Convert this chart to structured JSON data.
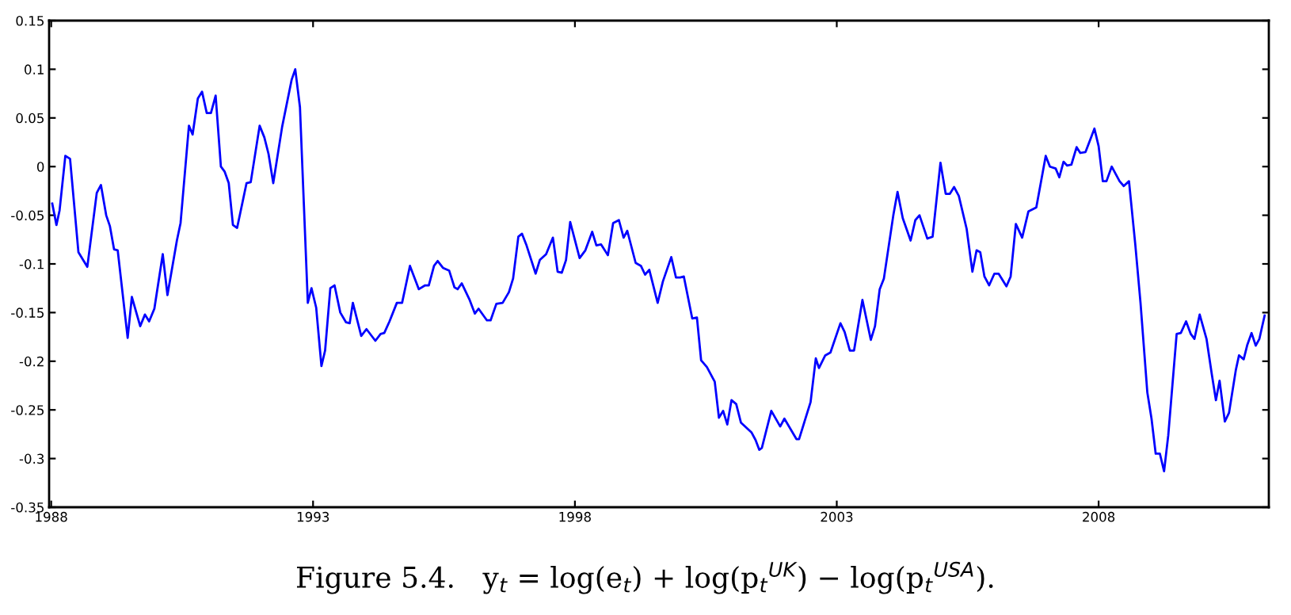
{
  "chart_data": {
    "type": "line",
    "color": "#0000ff",
    "x": [
      1988.02,
      1988.1,
      1988.16,
      1988.27,
      1988.36,
      1988.52,
      1988.69,
      1988.87,
      1988.95,
      1989.05,
      1989.12,
      1989.2,
      1989.27,
      1989.46,
      1989.54,
      1989.7,
      1989.79,
      1989.87,
      1989.97,
      1990.13,
      1990.22,
      1990.4,
      1990.47,
      1990.63,
      1990.7,
      1990.8,
      1990.88,
      1990.97,
      1991.05,
      1991.14,
      1991.24,
      1991.31,
      1991.39,
      1991.47,
      1991.55,
      1991.73,
      1991.81,
      1991.98,
      1992.07,
      1992.15,
      1992.24,
      1992.41,
      1992.59,
      1992.66,
      1992.75,
      1992.9,
      1992.97,
      1993.06,
      1993.16,
      1993.23,
      1993.33,
      1993.41,
      1993.52,
      1993.63,
      1993.7,
      1993.76,
      1993.92,
      1994.02,
      1994.19,
      1994.29,
      1994.36,
      1994.46,
      1994.6,
      1994.7,
      1994.85,
      1995.02,
      1995.14,
      1995.21,
      1995.31,
      1995.38,
      1995.48,
      1995.6,
      1995.7,
      1995.76,
      1995.84,
      1995.99,
      1996.09,
      1996.16,
      1996.32,
      1996.39,
      1996.5,
      1996.62,
      1996.74,
      1996.82,
      1996.92,
      1996.99,
      1997.07,
      1997.25,
      1997.33,
      1997.45,
      1997.58,
      1997.67,
      1997.75,
      1997.83,
      1997.91,
      1998.09,
      1998.2,
      1998.33,
      1998.41,
      1998.5,
      1998.63,
      1998.73,
      1998.84,
      1998.93,
      1999.0,
      1999.16,
      1999.26,
      1999.34,
      1999.42,
      1999.58,
      1999.68,
      1999.84,
      1999.93,
      2000.01,
      2000.08,
      2000.24,
      2000.33,
      2000.41,
      2000.52,
      2000.67,
      2000.75,
      2000.83,
      2000.91,
      2000.99,
      2001.08,
      2001.17,
      2001.37,
      2001.45,
      2001.52,
      2001.57,
      2001.75,
      2001.92,
      2002.0,
      2002.23,
      2002.28,
      2002.5,
      2002.6,
      2002.66,
      2002.78,
      2002.88,
      2003.07,
      2003.15,
      2003.25,
      2003.33,
      2003.49,
      2003.65,
      2003.73,
      2003.82,
      2003.9,
      2004.08,
      2004.16,
      2004.26,
      2004.41,
      2004.5,
      2004.58,
      2004.73,
      2004.83,
      2004.98,
      2005.08,
      2005.16,
      2005.24,
      2005.33,
      2005.48,
      2005.59,
      2005.67,
      2005.74,
      2005.82,
      2005.91,
      2006.01,
      2006.09,
      2006.24,
      2006.32,
      2006.42,
      2006.54,
      2006.66,
      2006.81,
      2006.99,
      2007.07,
      2007.18,
      2007.25,
      2007.33,
      2007.4,
      2007.48,
      2007.58,
      2007.65,
      2007.75,
      2007.85,
      2007.92,
      2008.0,
      2008.08,
      2008.15,
      2008.25,
      2008.4,
      2008.48,
      2008.58,
      2008.7,
      2008.8,
      2008.93,
      2009.01,
      2009.09,
      2009.17,
      2009.25,
      2009.33,
      2009.49,
      2009.57,
      2009.67,
      2009.76,
      2009.83,
      2009.93,
      2010.06,
      2010.16,
      2010.24,
      2010.31,
      2010.41,
      2010.49,
      2010.62,
      2010.68,
      2010.77,
      2010.84,
      2010.92,
      2011.0,
      2011.07,
      2011.17
    ],
    "values": [
      -0.038,
      -0.06,
      -0.045,
      0.011,
      0.008,
      -0.088,
      -0.103,
      -0.027,
      -0.019,
      -0.05,
      -0.061,
      -0.085,
      -0.086,
      -0.176,
      -0.134,
      -0.164,
      -0.152,
      -0.159,
      -0.146,
      -0.09,
      -0.132,
      -0.076,
      -0.058,
      0.042,
      0.033,
      0.07,
      0.077,
      0.055,
      0.055,
      0.073,
      0.0,
      -0.005,
      -0.017,
      -0.06,
      -0.063,
      -0.017,
      -0.016,
      0.042,
      0.03,
      0.013,
      -0.017,
      0.041,
      0.089,
      0.1,
      0.061,
      -0.14,
      -0.125,
      -0.145,
      -0.205,
      -0.189,
      -0.125,
      -0.122,
      -0.15,
      -0.16,
      -0.161,
      -0.14,
      -0.174,
      -0.167,
      -0.179,
      -0.172,
      -0.171,
      -0.159,
      -0.14,
      -0.14,
      -0.102,
      -0.126,
      -0.122,
      -0.122,
      -0.102,
      -0.097,
      -0.104,
      -0.107,
      -0.124,
      -0.126,
      -0.12,
      -0.137,
      -0.151,
      -0.146,
      -0.158,
      -0.158,
      -0.141,
      -0.14,
      -0.129,
      -0.115,
      -0.072,
      -0.069,
      -0.08,
      -0.11,
      -0.096,
      -0.09,
      -0.073,
      -0.108,
      -0.109,
      -0.096,
      -0.057,
      -0.094,
      -0.086,
      -0.067,
      -0.081,
      -0.08,
      -0.091,
      -0.058,
      -0.055,
      -0.073,
      -0.066,
      -0.099,
      -0.102,
      -0.111,
      -0.106,
      -0.14,
      -0.118,
      -0.093,
      -0.114,
      -0.114,
      -0.113,
      -0.156,
      -0.155,
      -0.199,
      -0.206,
      -0.221,
      -0.258,
      -0.251,
      -0.265,
      -0.24,
      -0.244,
      -0.263,
      -0.273,
      -0.281,
      -0.291,
      -0.289,
      -0.251,
      -0.267,
      -0.259,
      -0.28,
      -0.28,
      -0.242,
      -0.197,
      -0.207,
      -0.194,
      -0.191,
      -0.161,
      -0.17,
      -0.189,
      -0.189,
      -0.137,
      -0.178,
      -0.164,
      -0.126,
      -0.115,
      -0.05,
      -0.026,
      -0.053,
      -0.076,
      -0.055,
      -0.05,
      -0.074,
      -0.072,
      0.004,
      -0.028,
      -0.028,
      -0.021,
      -0.03,
      -0.064,
      -0.108,
      -0.086,
      -0.088,
      -0.113,
      -0.122,
      -0.11,
      -0.11,
      -0.123,
      -0.113,
      -0.059,
      -0.073,
      -0.046,
      -0.042,
      0.011,
      0.0,
      -0.002,
      -0.011,
      0.005,
      0.001,
      0.002,
      0.02,
      0.014,
      0.015,
      0.029,
      0.039,
      0.021,
      -0.015,
      -0.015,
      0.0,
      -0.015,
      -0.02,
      -0.015,
      -0.08,
      -0.14,
      -0.232,
      -0.259,
      -0.295,
      -0.295,
      -0.313,
      -0.276,
      -0.172,
      -0.171,
      -0.159,
      -0.172,
      -0.177,
      -0.152,
      -0.177,
      -0.213,
      -0.24,
      -0.22,
      -0.262,
      -0.253,
      -0.209,
      -0.194,
      -0.198,
      -0.183,
      -0.171,
      -0.184,
      -0.177,
      -0.153
    ],
    "xlim": [
      1987.96,
      2011.25
    ],
    "xticks": [
      1988,
      1993,
      1998,
      2003,
      2008
    ],
    "ylim": [
      -0.35,
      0.15
    ],
    "yticks": [
      {
        "value": -0.35,
        "label": "-0.35"
      },
      {
        "value": -0.3,
        "label": "-0.3"
      },
      {
        "value": -0.25,
        "label": "-0.25"
      },
      {
        "value": -0.2,
        "label": "-0.2"
      },
      {
        "value": -0.15,
        "label": "-0.15"
      },
      {
        "value": -0.1,
        "label": "-0.1"
      },
      {
        "value": -0.05,
        "label": "-0.05"
      },
      0,
      0.05,
      0.1,
      0.15
    ],
    "grid": false,
    "marker": "none",
    "line_style": "solid",
    "annotations": [
      "Figure 5.4.   y$_{t}$ = log(e$_{t}$) + log(p$_{t}$$^{UK}$) − log(p$_{t}$$^{USA}$)."
    ]
  }
}
